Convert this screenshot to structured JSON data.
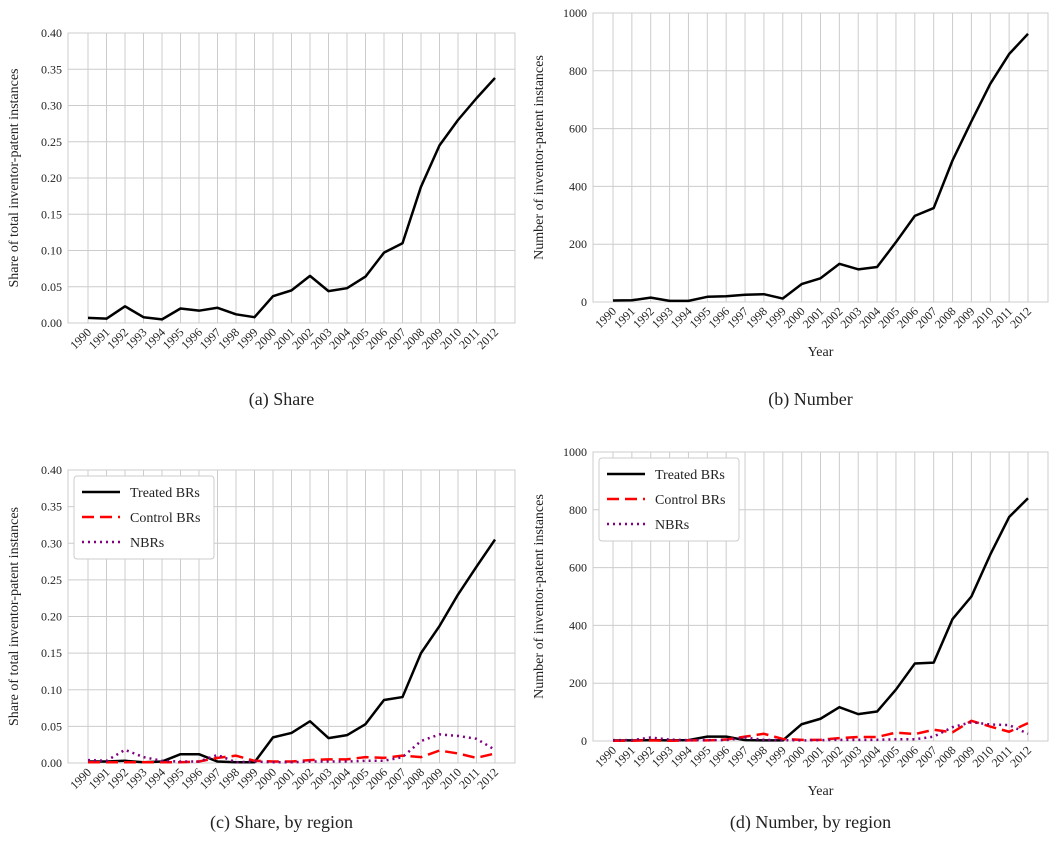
{
  "chart_data": [
    {
      "type": "line",
      "caption": "(a) Share",
      "ylabel": "Share of total inventor-patent instances",
      "categories": [
        "1990",
        "1991",
        "1992",
        "1993",
        "1994",
        "1995",
        "1996",
        "1997",
        "1998",
        "1999",
        "2000",
        "2001",
        "2002",
        "2003",
        "2004",
        "2005",
        "2006",
        "2007",
        "2008",
        "2009",
        "2010",
        "2011",
        "2012"
      ],
      "values": [
        0.007,
        0.006,
        0.023,
        0.008,
        0.005,
        0.02,
        0.017,
        0.021,
        0.012,
        0.008,
        0.037,
        0.045,
        0.065,
        0.044,
        0.048,
        0.064,
        0.097,
        0.11,
        0.188,
        0.245,
        0.28,
        0.31,
        0.338
      ],
      "color": "#000000",
      "ylim": [
        0,
        0.4
      ],
      "yticks": [
        {
          "value": 0,
          "label": "0.00"
        },
        {
          "value": 0.05,
          "label": "0.05"
        },
        {
          "value": 0.1,
          "label": "0.10"
        },
        {
          "value": 0.15,
          "label": "0.15"
        },
        {
          "value": 0.2,
          "label": "0.20"
        },
        {
          "value": 0.25,
          "label": "0.25"
        },
        {
          "value": 0.3,
          "label": "0.30"
        },
        {
          "value": 0.35,
          "label": "0.35"
        },
        {
          "value": 0.4,
          "label": "0.40"
        }
      ],
      "grid": true
    },
    {
      "type": "line",
      "caption": "(b) Number",
      "ylabel": "Number of inventor-patent instances",
      "xlabel": "Year",
      "categories": [
        "1990",
        "1991",
        "1992",
        "1993",
        "1994",
        "1995",
        "1996",
        "1997",
        "1998",
        "1999",
        "2000",
        "2001",
        "2002",
        "2003",
        "2004",
        "2005",
        "2006",
        "2007",
        "2008",
        "2009",
        "2010",
        "2011",
        "2012"
      ],
      "values": [
        5,
        6,
        15,
        4,
        4,
        18,
        20,
        25,
        27,
        12,
        62,
        82,
        132,
        113,
        121,
        207,
        298,
        325,
        490,
        625,
        755,
        858,
        928
      ],
      "color": "#000000",
      "ylim": [
        0,
        1000
      ],
      "yticks": [
        0,
        200,
        400,
        600,
        800,
        1000
      ],
      "grid": true
    },
    {
      "type": "line",
      "caption": "(c) Share, by region",
      "ylabel": "Share of total inventor-patent instances",
      "categories": [
        "1990",
        "1991",
        "1992",
        "1993",
        "1994",
        "1995",
        "1996",
        "1997",
        "1998",
        "1999",
        "2000",
        "2001",
        "2002",
        "2003",
        "2004",
        "2005",
        "2006",
        "2007",
        "2008",
        "2009",
        "2010",
        "2011",
        "2012"
      ],
      "series": [
        {
          "name": "Treated BRs",
          "color": "#000000",
          "style": "solid",
          "values": [
            0.002,
            0.002,
            0.003,
            0.001,
            0.002,
            0.012,
            0.012,
            0.002,
            0.001,
            0.001,
            0.035,
            0.041,
            0.057,
            0.034,
            0.038,
            0.053,
            0.086,
            0.09,
            0.15,
            0.187,
            0.23,
            0.268,
            0.305
          ]
        },
        {
          "name": "Control BRs",
          "color": "#ff0000",
          "style": "dashed",
          "values": [
            0.001,
            0.001,
            0.001,
            0.001,
            0.001,
            0.001,
            0.002,
            0.007,
            0.01,
            0.003,
            0.002,
            0.002,
            0.004,
            0.005,
            0.005,
            0.008,
            0.007,
            0.01,
            0.008,
            0.017,
            0.013,
            0.007,
            0.013
          ]
        },
        {
          "name": "NBRs",
          "color": "#800080",
          "style": "dotted",
          "values": [
            0.004,
            0.003,
            0.018,
            0.008,
            0.003,
            0.002,
            0.002,
            0.011,
            0.001,
            0.002,
            0.001,
            0.001,
            0.002,
            0.002,
            0.002,
            0.003,
            0.003,
            0.008,
            0.03,
            0.039,
            0.037,
            0.033,
            0.018
          ]
        }
      ],
      "ylim": [
        0,
        0.4
      ],
      "yticks": [
        {
          "value": 0,
          "label": "0.00"
        },
        {
          "value": 0.05,
          "label": "0.05"
        },
        {
          "value": 0.1,
          "label": "0.10"
        },
        {
          "value": 0.15,
          "label": "0.15"
        },
        {
          "value": 0.2,
          "label": "0.20"
        },
        {
          "value": 0.25,
          "label": "0.25"
        },
        {
          "value": 0.3,
          "label": "0.30"
        },
        {
          "value": 0.35,
          "label": "0.35"
        },
        {
          "value": 0.4,
          "label": "0.40"
        }
      ],
      "grid": true,
      "legend": "upper left"
    },
    {
      "type": "line",
      "caption": "(d) Number, by region",
      "ylabel": "Number of inventor-patent instances",
      "xlabel": "Year",
      "categories": [
        "1990",
        "1991",
        "1992",
        "1993",
        "1994",
        "1995",
        "1996",
        "1997",
        "1998",
        "1999",
        "2000",
        "2001",
        "2002",
        "2003",
        "2004",
        "2005",
        "2006",
        "2007",
        "2008",
        "2009",
        "2010",
        "2011",
        "2012"
      ],
      "series": [
        {
          "name": "Treated BRs",
          "color": "#000000",
          "style": "solid",
          "values": [
            2,
            2,
            3,
            2,
            3,
            15,
            15,
            3,
            2,
            2,
            58,
            77,
            117,
            93,
            102,
            178,
            268,
            271,
            422,
            500,
            645,
            775,
            840
          ]
        },
        {
          "name": "Control BRs",
          "color": "#ff0000",
          "style": "dashed",
          "values": [
            1,
            1,
            2,
            1,
            2,
            2,
            5,
            15,
            25,
            7,
            4,
            4,
            10,
            14,
            14,
            29,
            24,
            39,
            30,
            70,
            50,
            32,
            62
          ]
        },
        {
          "name": "NBRs",
          "color": "#800080",
          "style": "dotted",
          "values": [
            3,
            3,
            12,
            5,
            3,
            3,
            3,
            12,
            4,
            3,
            2,
            3,
            4,
            4,
            4,
            6,
            6,
            15,
            48,
            65,
            57,
            55,
            25
          ]
        }
      ],
      "ylim": [
        0,
        1000
      ],
      "yticks": [
        0,
        200,
        400,
        600,
        800,
        1000
      ],
      "grid": true,
      "legend": "upper left"
    }
  ]
}
